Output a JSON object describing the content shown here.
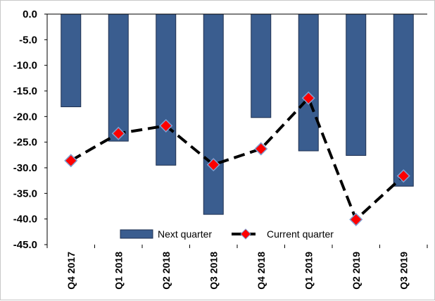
{
  "chart_data": {
    "type": "bar",
    "categories": [
      "Q4 2017",
      "Q1 2018",
      "Q2 2018",
      "Q3 2018",
      "Q4 2018",
      "Q1 2019",
      "Q2 2019",
      "Q3 2019"
    ],
    "series": [
      {
        "name": "Next quarter",
        "type": "bar",
        "values": [
          -18.1,
          -24.8,
          -29.5,
          -39.1,
          -20.2,
          -26.7,
          -27.6,
          -33.6
        ]
      },
      {
        "name": "Current quarter",
        "type": "line",
        "values": [
          -28.6,
          -23.3,
          -21.8,
          -29.4,
          -26.3,
          -16.4,
          -40.1,
          -31.6
        ]
      }
    ],
    "ylim": [
      -45,
      0
    ],
    "yticks": [
      "0.0",
      "-5.0",
      "-10.0",
      "-15.0",
      "-20.0",
      "-25.0",
      "-30.0",
      "-35.0",
      "-40.0",
      "-45.0"
    ],
    "legend": {
      "position": "bottom-center"
    },
    "colors": {
      "bar": "#3a5d8f",
      "bar_border": "#1f3050",
      "line": "#000000",
      "marker": "#ff0000",
      "marker_border": "#7f9fd0"
    },
    "grid": false
  }
}
